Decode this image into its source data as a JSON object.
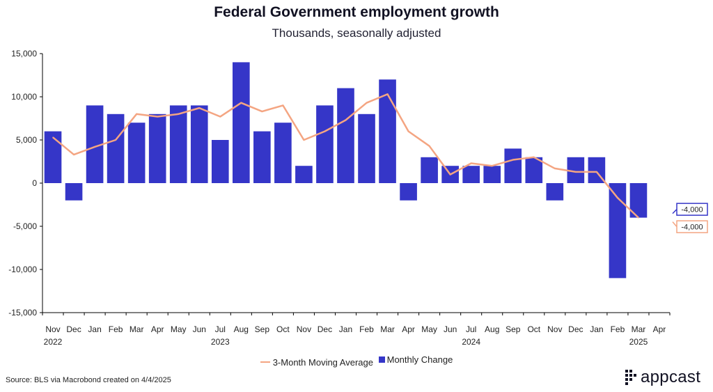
{
  "header": {
    "title": "Federal Government employment growth",
    "subtitle": "Thousands, seasonally adjusted"
  },
  "chart_data": {
    "type": "bar",
    "title": "Federal Government employment growth",
    "subtitle": "Thousands, seasonally adjusted",
    "xlabel": "",
    "ylabel": "",
    "ylim": [
      -15000,
      15000
    ],
    "yticks": [
      15000,
      10000,
      5000,
      0,
      -5000,
      -10000,
      -15000
    ],
    "ytick_labels": [
      "15,000",
      "10,000",
      "5,000",
      "0",
      "-5,000",
      "-10,000",
      "-15,000"
    ],
    "categories": [
      "Nov",
      "Dec",
      "Jan",
      "Feb",
      "Mar",
      "Apr",
      "May",
      "Jun",
      "Jul",
      "Aug",
      "Sep",
      "Oct",
      "Nov",
      "Dec",
      "Jan",
      "Feb",
      "Mar",
      "Apr",
      "May",
      "Jun",
      "Jul",
      "Aug",
      "Sep",
      "Oct",
      "Nov",
      "Dec",
      "Jan",
      "Feb",
      "Mar",
      "Apr"
    ],
    "year_labels": [
      {
        "year": "2022",
        "category_index": 0
      },
      {
        "year": "2023",
        "category_index": 8
      },
      {
        "year": "2024",
        "category_index": 20
      },
      {
        "year": "2025",
        "category_index": 28
      }
    ],
    "series": [
      {
        "name": "Monthly Change",
        "kind": "bar",
        "color": "#3536c8",
        "values": [
          6000,
          -2000,
          9000,
          8000,
          7000,
          8000,
          9000,
          9000,
          5000,
          14000,
          6000,
          7000,
          2000,
          9000,
          11000,
          8000,
          12000,
          -2000,
          3000,
          2000,
          2000,
          2000,
          4000,
          3000,
          -2000,
          3000,
          3000,
          -11000,
          -4000,
          null
        ]
      },
      {
        "name": "3-Month Moving Average",
        "kind": "line",
        "color": "#f4a582",
        "values": [
          5300,
          3300,
          4200,
          5000,
          8000,
          7700,
          8000,
          8700,
          7700,
          9300,
          8300,
          9000,
          5000,
          6000,
          7300,
          9300,
          10300,
          6000,
          4300,
          1000,
          2300,
          2000,
          2700,
          3000,
          1700,
          1300,
          1300,
          -1700,
          -4000,
          null
        ]
      }
    ],
    "end_labels": [
      {
        "series": "Monthly Change",
        "text": "-4,000"
      },
      {
        "series": "3-Month Moving Average",
        "text": "-4,000"
      }
    ],
    "legend_position": "bottom-center"
  },
  "legend": {
    "line_label": "3-Month Moving Average",
    "bar_label": "Monthly Change"
  },
  "footer": {
    "source": "Source: BLS via Macrobond created on 4/4/2025",
    "brand": "appcast"
  },
  "colors": {
    "bar": "#3536c8",
    "line": "#f4a582",
    "text": "#111122"
  }
}
